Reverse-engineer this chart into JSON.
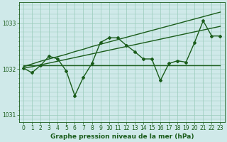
{
  "title": "Graphe pression niveau de la mer (hPa)",
  "bg_color": "#cfe9e9",
  "grid_color": "#99ccbb",
  "line_color": "#1a5c1a",
  "xlim": [
    -0.5,
    23.5
  ],
  "ylim": [
    1030.85,
    1033.45
  ],
  "yticks": [
    1031,
    1032,
    1033
  ],
  "xticks": [
    0,
    1,
    2,
    3,
    4,
    5,
    6,
    7,
    8,
    9,
    10,
    11,
    12,
    13,
    14,
    15,
    16,
    17,
    18,
    19,
    20,
    21,
    22,
    23
  ],
  "x": [
    0,
    1,
    2,
    3,
    4,
    5,
    6,
    7,
    8,
    9,
    10,
    11,
    12,
    13,
    14,
    15,
    16,
    17,
    18,
    19,
    20,
    21,
    22,
    23
  ],
  "y_main": [
    1032.02,
    1031.92,
    1032.08,
    1032.28,
    1032.22,
    1031.96,
    1031.42,
    1031.82,
    1032.12,
    1032.58,
    1032.68,
    1032.68,
    1032.52,
    1032.38,
    1032.22,
    1032.22,
    1031.75,
    1032.12,
    1032.18,
    1032.15,
    1032.58,
    1033.05,
    1032.72,
    1032.72
  ],
  "y_trend_flat": [
    1032.08,
    1032.08,
    1032.08,
    1032.08,
    1032.08,
    1032.08,
    1032.08,
    1032.08,
    1032.08,
    1032.08,
    1032.08,
    1032.08,
    1032.08,
    1032.08,
    1032.08,
    1032.08,
    1032.08,
    1032.08,
    1032.08,
    1032.08,
    1032.08,
    1032.08,
    1032.08,
    1032.08
  ],
  "y_trend_low": [
    1032.02,
    1032.05,
    1032.09,
    1032.13,
    1032.17,
    1032.21,
    1032.25,
    1032.29,
    1032.33,
    1032.37,
    1032.41,
    1032.45,
    1032.49,
    1032.53,
    1032.57,
    1032.61,
    1032.65,
    1032.69,
    1032.73,
    1032.77,
    1032.81,
    1032.85,
    1032.89,
    1032.93
  ],
  "y_trend_high": [
    1032.05,
    1032.11,
    1032.17,
    1032.22,
    1032.27,
    1032.32,
    1032.38,
    1032.43,
    1032.49,
    1032.54,
    1032.59,
    1032.64,
    1032.69,
    1032.74,
    1032.79,
    1032.84,
    1032.89,
    1032.94,
    1032.99,
    1033.04,
    1033.09,
    1033.14,
    1033.19,
    1033.24
  ],
  "marker": "D",
  "markersize": 2.0,
  "linewidth": 1.0,
  "tick_fontsize": 5.5,
  "title_fontsize": 6.5
}
